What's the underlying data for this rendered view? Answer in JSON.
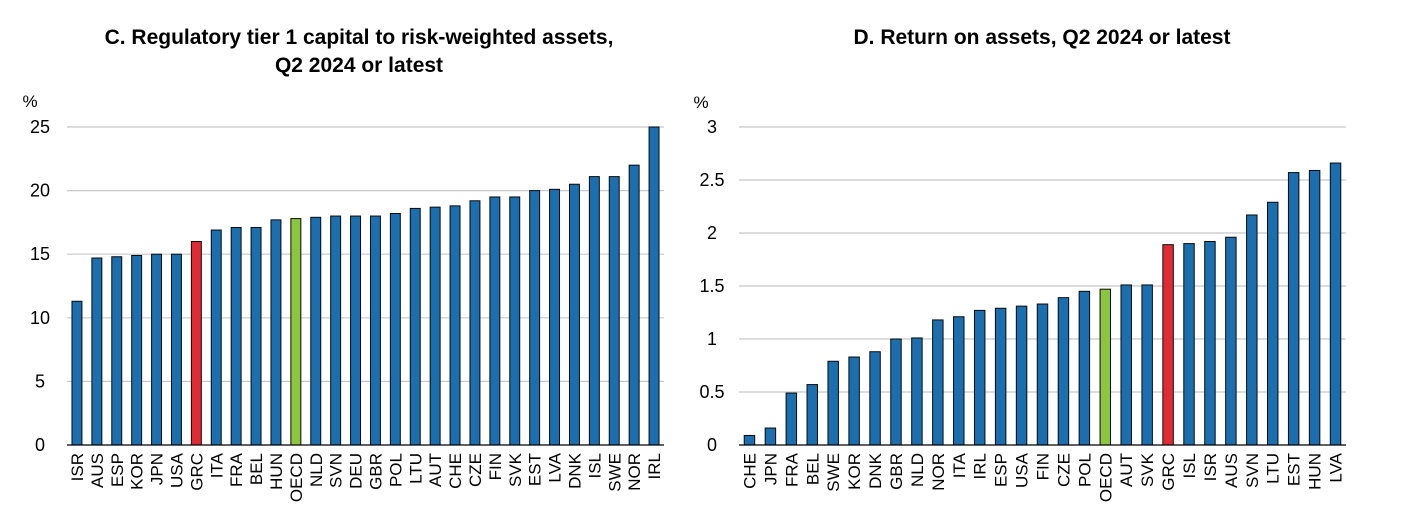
{
  "chart_data": [
    {
      "type": "bar",
      "title_lines": [
        "C. Regulatory tier 1 capital to risk-weighted assets,",
        "Q2 2024 or latest"
      ],
      "ylabel": "%",
      "ylim": [
        0,
        25
      ],
      "yticks": [
        "0",
        "5",
        "10",
        "15",
        "20",
        "25"
      ],
      "grid": true,
      "categories": [
        "ISR",
        "AUS",
        "ESP",
        "KOR",
        "JPN",
        "USA",
        "GRC",
        "ITA",
        "FRA",
        "BEL",
        "HUN",
        "OECD",
        "NLD",
        "SVN",
        "DEU",
        "GBR",
        "POL",
        "LTU",
        "AUT",
        "CHE",
        "CZE",
        "FIN",
        "SVK",
        "EST",
        "LVA",
        "DNK",
        "ISL",
        "SWE",
        "NOR",
        "IRL"
      ],
      "values": [
        11.3,
        14.7,
        14.8,
        14.9,
        15.0,
        15.0,
        16.0,
        16.9,
        17.1,
        17.1,
        17.7,
        17.8,
        17.9,
        18.0,
        18.0,
        18.0,
        18.2,
        18.6,
        18.7,
        18.8,
        19.2,
        19.5,
        19.5,
        20.0,
        20.1,
        20.5,
        21.1,
        21.1,
        22.0,
        25.0
      ],
      "highlight": {
        "GRC": "#e02b35",
        "OECD": "#8cc63f"
      }
    },
    {
      "type": "bar",
      "title_lines": [
        "D. Return on assets, Q2 2024 or latest"
      ],
      "ylabel": "%",
      "ylim": [
        0,
        3
      ],
      "yticks": [
        "0",
        "0.5",
        "1",
        "1.5",
        "2",
        "2.5",
        "3"
      ],
      "grid": true,
      "categories": [
        "CHE",
        "JPN",
        "FRA",
        "BEL",
        "SWE",
        "KOR",
        "DNK",
        "GBR",
        "NLD",
        "NOR",
        "ITA",
        "IRL",
        "ESP",
        "USA",
        "FIN",
        "CZE",
        "POL",
        "OECD",
        "AUT",
        "SVK",
        "GRC",
        "ISL",
        "ISR",
        "AUS",
        "SVN",
        "LTU",
        "EST",
        "HUN",
        "LVA"
      ],
      "values": [
        0.09,
        0.16,
        0.49,
        0.57,
        0.79,
        0.83,
        0.88,
        1.0,
        1.01,
        1.18,
        1.21,
        1.27,
        1.29,
        1.31,
        1.33,
        1.39,
        1.45,
        1.47,
        1.51,
        1.51,
        1.89,
        1.9,
        1.92,
        1.96,
        2.17,
        2.29,
        2.57,
        2.59,
        2.66
      ],
      "highlight": {
        "GRC": "#e02b35",
        "OECD": "#8cc63f"
      }
    }
  ],
  "colors": {
    "bar": "#1b6fae",
    "bar_outline": "#0a0a0a",
    "grid": "#c8c8c8",
    "axis": "#000000"
  }
}
